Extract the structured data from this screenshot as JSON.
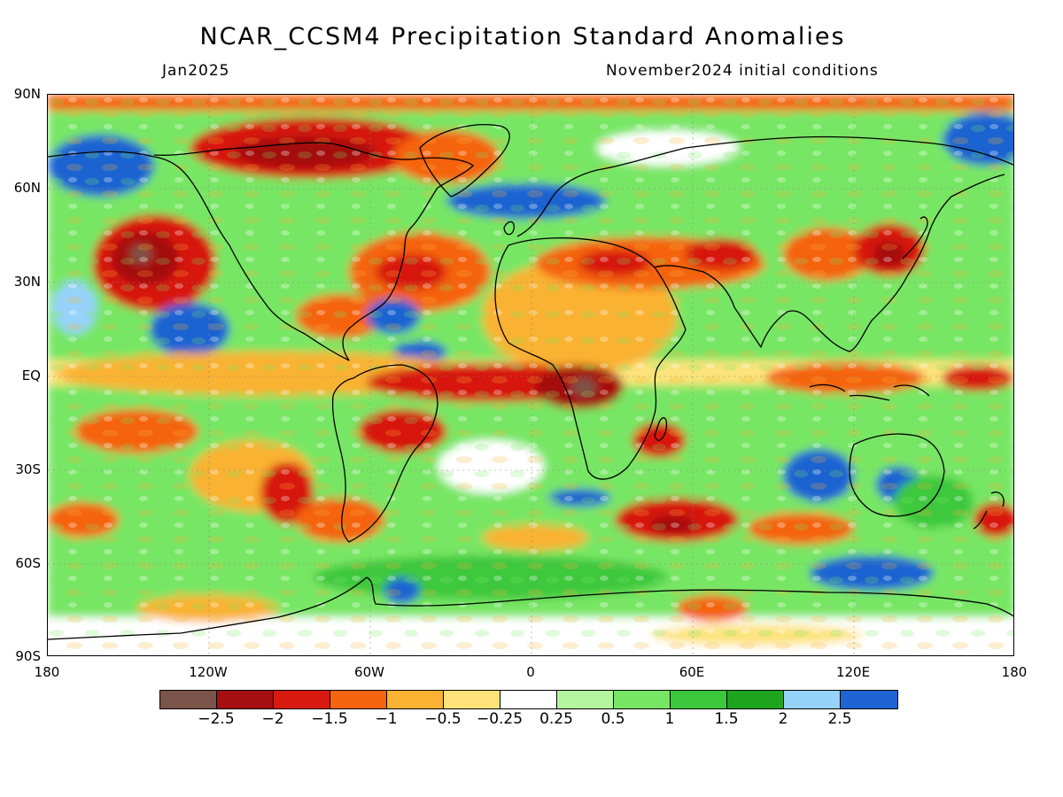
{
  "title": "NCAR_CCSM4 Precipitation Standard Anomalies",
  "subtitle_left": "Jan2025",
  "subtitle_right": "November2024 initial conditions",
  "lat_labels": [
    "90N",
    "60N",
    "30N",
    "EQ",
    "30S",
    "60S",
    "90S"
  ],
  "lon_labels": [
    "180",
    "120W",
    "60W",
    "0",
    "60E",
    "120E",
    "180"
  ],
  "colorbar": {
    "colors": [
      "#7b5449",
      "#a50f0f",
      "#d7190f",
      "#f5640f",
      "#f9b232",
      "#fde37a",
      "#ffffff",
      "#b4f5a0",
      "#78e665",
      "#3cc83c",
      "#1ea51e",
      "#96d2fa",
      "#1e64d2"
    ],
    "labels": [
      "-2.5",
      "-2",
      "-1.5",
      "-1",
      "-0.5",
      "-0.25",
      "0.25",
      "0.5",
      "1",
      "1.5",
      "2",
      "2.5"
    ]
  },
  "map_data": {
    "projection": "latitude-longitude",
    "variable": "precipitation standard anomaly",
    "regions": [
      {
        "region": "Equatorial Pacific",
        "anomaly_class": "below normal (-0.25 to -1)"
      },
      {
        "region": "Northeast Pacific off North America",
        "anomaly_class": "strongly below normal (-1.5 to -2.5)"
      },
      {
        "region": "Equatorial Atlantic / northern South America",
        "anomaly_class": "strongly below normal (-1.5 to -2.5)"
      },
      {
        "region": "Central Equatorial Africa",
        "anomaly_class": "strongly below normal (-1.5 to -2.5)"
      },
      {
        "region": "North Africa / Middle East",
        "anomaly_class": "below normal (-0.5 to -1.5)"
      },
      {
        "region": "Japan / Northwest Pacific",
        "anomaly_class": "strongly below normal (-1.5 to -2)"
      },
      {
        "region": "Canadian Arctic",
        "anomaly_class": "below normal (-1 to -2)"
      },
      {
        "region": "Southern Indian Ocean off Australia",
        "anomaly_class": "above normal (2 to 2.5)"
      },
      {
        "region": "Alaska / Bering Sea",
        "anomaly_class": "above normal (2 to 2.5)"
      },
      {
        "region": "Southern Ocean",
        "anomaly_class": "above normal (0.5 to 2)"
      }
    ]
  }
}
